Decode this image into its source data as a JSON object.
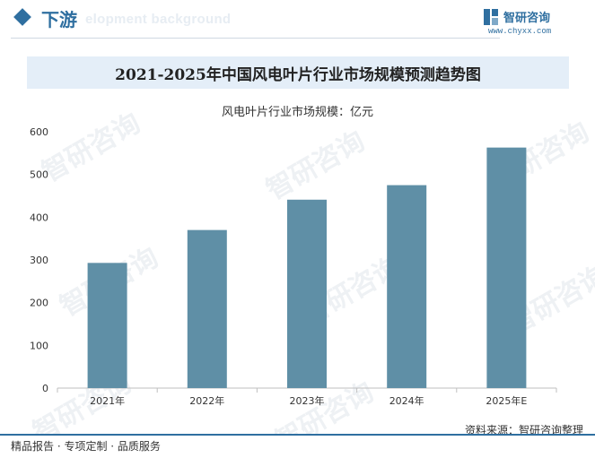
{
  "header": {
    "section_title": "下游",
    "ghost_text": "elopment background",
    "logo_name": "智研咨询",
    "logo_url": "www.chyxx.com"
  },
  "title": "2021-2025年中国风电叶片行业市场规模预测趋势图",
  "footer": {
    "left_text": "精品报告 · 专项定制 · 品质服务",
    "source": "资料来源：智研咨询整理"
  },
  "watermark": "智研咨询",
  "colors": {
    "bar": "#5f8fa6",
    "accent": "#2f6fa0",
    "title_band": "#e4eef8"
  },
  "chart_data": {
    "type": "bar",
    "title": "2021-2025年中国风电叶片行业市场规模预测趋势图",
    "series": [
      {
        "name": "风电叶片行业市场规模：亿元",
        "values": [
          293,
          370,
          441,
          475,
          563
        ]
      }
    ],
    "categories": [
      "2021年",
      "2022年",
      "2023年",
      "2024年",
      "2025年E"
    ],
    "ylim": [
      0,
      600
    ],
    "yticks": [
      0,
      100,
      200,
      300,
      400,
      500,
      600
    ],
    "legend": "top-center",
    "grid": false
  }
}
